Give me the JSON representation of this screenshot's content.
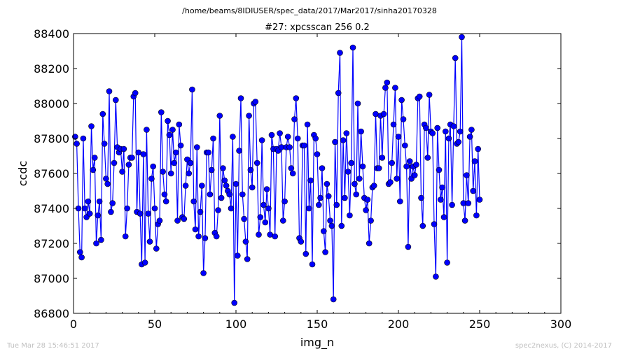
{
  "footer": {
    "timestamp": "Tue Mar 28 15:46:51 2017",
    "credit": "spec2nexus, (C) 2014-2017"
  },
  "chart_data": {
    "type": "line",
    "supertitle": "/home/beams/8IDIUSER/spec_data/2017/Mar2017/sinha20170328",
    "title": "#27: xpcsscan 256 0.2",
    "xlabel": "img_n",
    "ylabel": "ccdc",
    "xlim": [
      0,
      300
    ],
    "ylim": [
      86800,
      88400
    ],
    "xticks": [
      0,
      50,
      100,
      150,
      200,
      250,
      300
    ],
    "yticks": [
      86800,
      87000,
      87200,
      87400,
      87600,
      87800,
      88000,
      88200,
      88400
    ],
    "series_color": "#0000ff",
    "marker": "circle",
    "grid": false,
    "series": [
      {
        "values": [
          87810,
          87770,
          87400,
          87150,
          87120,
          87800,
          87400,
          87350,
          87440,
          87370,
          87870,
          87620,
          87690,
          87200,
          87360,
          87440,
          87220,
          87940,
          87770,
          87570,
          87540,
          88070,
          87380,
          87430,
          87660,
          88020,
          87750,
          87720,
          87740,
          87610,
          87740,
          87240,
          87400,
          87650,
          87690,
          87690,
          88040,
          88060,
          87380,
          87720,
          87370,
          87080,
          87710,
          87090,
          87850,
          87370,
          87210,
          87570,
          87640,
          87400,
          87170,
          87310,
          87330,
          87950,
          87610,
          87480,
          87440,
          87900,
          87820,
          87600,
          87850,
          87660,
          87720,
          87330,
          87880,
          87760,
          87350,
          87340,
          87530,
          87680,
          87600,
          87660,
          88080,
          87440,
          87280,
          87750,
          87240,
          87380,
          87530,
          87030,
          87230,
          87720,
          87720,
          87480,
          87620,
          87800,
          87260,
          87240,
          87390,
          87930,
          87460,
          87630,
          87560,
          87530,
          87500,
          87480,
          87400,
          87810,
          86860,
          87540,
          87130,
          87730,
          88030,
          87480,
          87340,
          87210,
          87110,
          87930,
          87620,
          87520,
          88000,
          88010,
          87660,
          87250,
          87350,
          87790,
          87420,
          87320,
          87510,
          87400,
          87250,
          87820,
          87740,
          87240,
          87740,
          87730,
          87830,
          87750,
          87330,
          87440,
          87750,
          87810,
          87750,
          87630,
          87600,
          87910,
          88030,
          87800,
          87230,
          87210,
          87760,
          87760,
          87140,
          87880,
          87400,
          87560,
          87080,
          87820,
          87800,
          87710,
          87420,
          87460,
          87630,
          87270,
          87150,
          87540,
          87470,
          87330,
          87300,
          86880,
          87780,
          87420,
          88060,
          88290,
          87300,
          87790,
          87460,
          87830,
          87610,
          87360,
          87660,
          88320,
          87540,
          87480,
          88000,
          87570,
          87840,
          87640,
          87460,
          87390,
          87450,
          87200,
          87330,
          87520,
          87530,
          87940,
          87630,
          87630,
          87930,
          87690,
          87940,
          88090,
          88120,
          87540,
          87550,
          87660,
          87880,
          88090,
          87570,
          87810,
          87440,
          88020,
          87910,
          87760,
          87640,
          87180,
          87670,
          87570,
          87640,
          87590,
          87650,
          88030,
          88040,
          87460,
          87300,
          87880,
          87860,
          87690,
          88050,
          87840,
          87830,
          87310,
          87010,
          87860,
          87620,
          87450,
          87520,
          87350,
          87840,
          87090,
          87800,
          87880,
          87420,
          87870,
          88260,
          87770,
          87780,
          87840,
          88380,
          87430,
          87330,
          87590,
          87430,
          87810,
          87850,
          87500,
          87670,
          87360,
          87740,
          87450
        ]
      }
    ]
  }
}
